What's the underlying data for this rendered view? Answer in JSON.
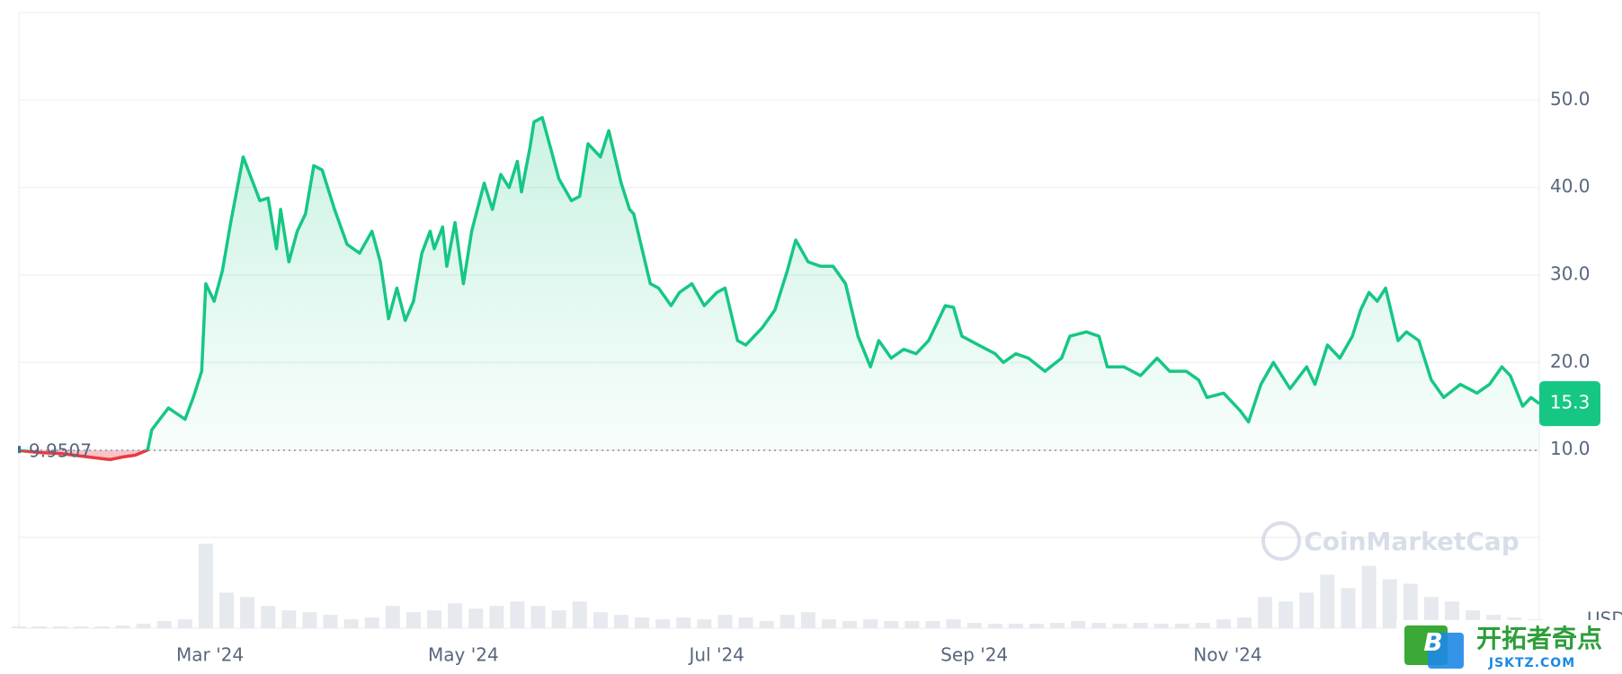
{
  "chart_data": {
    "type": "line",
    "x": [
      15,
      20,
      25,
      30,
      35,
      37,
      40,
      43,
      46,
      47,
      51,
      55,
      57,
      59,
      60,
      62,
      64,
      66,
      69,
      73,
      75,
      77,
      78,
      80,
      82,
      84,
      86,
      88,
      91,
      94,
      97,
      100,
      102,
      104,
      106,
      108,
      110,
      112,
      114,
      115,
      117,
      118,
      120,
      122,
      124,
      127,
      129,
      131,
      133,
      135,
      136,
      138,
      139,
      141,
      143,
      145,
      148,
      150,
      152,
      155,
      157,
      160,
      162,
      163,
      165,
      167,
      169,
      172,
      174,
      177,
      180,
      183,
      185,
      188,
      190,
      194,
      197,
      200,
      202,
      205,
      208,
      211,
      214,
      217,
      220,
      222,
      225,
      228,
      231,
      234,
      236,
      238,
      240,
      242,
      246,
      250,
      252,
      255,
      258,
      262,
      266,
      268,
      272,
      275,
      277,
      281,
      285,
      289,
      292,
      296,
      299,
      301,
      305,
      309,
      311,
      314,
      317,
      321,
      325,
      327,
      330,
      333,
      336,
      338,
      340,
      342,
      344,
      345,
      347,
      349,
      352,
      355,
      358,
      362,
      366,
      369,
      372,
      374,
      377,
      379,
      381
    ],
    "values": [
      9.95,
      9.7,
      9.6,
      9.3,
      9.0,
      8.9,
      9.2,
      9.4,
      10.0,
      12.3,
      14.8,
      13.5,
      16,
      19,
      29,
      27,
      30.5,
      36,
      43.5,
      38.5,
      38.8,
      33,
      37.5,
      31.5,
      35,
      37,
      42.5,
      42,
      37.5,
      33.5,
      32.5,
      35,
      31.5,
      25,
      28.5,
      24.8,
      27,
      32.5,
      35,
      33,
      35.5,
      31,
      36,
      29,
      35,
      40.5,
      37.5,
      41.5,
      40,
      43,
      39.5,
      44.5,
      47.5,
      48,
      44.5,
      41,
      38.5,
      39,
      45,
      43.5,
      46.5,
      40.5,
      37.5,
      37,
      33,
      29,
      28.5,
      26.5,
      28,
      29,
      26.5,
      28,
      28.5,
      22.5,
      22,
      24,
      26,
      30.5,
      34,
      31.5,
      31,
      31,
      29,
      23,
      19.5,
      22.5,
      20.5,
      21.5,
      21,
      22.5,
      24.5,
      26.5,
      26.3,
      23,
      22,
      21,
      20,
      21,
      20.5,
      19,
      20.5,
      23,
      23.5,
      23,
      19.5,
      19.5,
      18.5,
      20.5,
      19,
      19,
      18,
      16,
      16.5,
      14.5,
      13.2,
      17.5,
      20,
      17,
      19.5,
      17.5,
      22,
      20.5,
      23,
      26,
      28,
      27,
      28.5,
      26.5,
      22.5,
      23.5,
      22.5,
      18,
      16,
      17.5,
      16.5,
      17.5,
      19.5,
      18.5,
      15,
      16,
      15.3
    ],
    "color": "#16c784",
    "down_color": "#ea3943",
    "baseline": 9.9507,
    "xlim": [
      15,
      381
    ],
    "xticks": [
      {
        "value": 61,
        "label": "Mar '24"
      },
      {
        "value": 122,
        "label": "May '24"
      },
      {
        "value": 183,
        "label": "Jul '24"
      },
      {
        "value": 245,
        "label": "Sep '24"
      },
      {
        "value": 306,
        "label": "Nov '24"
      }
    ],
    "ylim": [
      0,
      60
    ],
    "yticks": [
      {
        "value": 10,
        "label": "10.0"
      },
      {
        "value": 20,
        "label": "20.0"
      },
      {
        "value": 30,
        "label": "30.0"
      },
      {
        "value": 40,
        "label": "40.0"
      },
      {
        "value": 50,
        "label": "50.0"
      }
    ],
    "grid": true,
    "volume": {
      "x": [
        15,
        20,
        25,
        30,
        35,
        40,
        45,
        50,
        55,
        60,
        65,
        70,
        75,
        80,
        85,
        90,
        95,
        100,
        105,
        110,
        115,
        120,
        125,
        130,
        135,
        140,
        145,
        150,
        155,
        160,
        165,
        170,
        175,
        180,
        185,
        190,
        195,
        200,
        205,
        210,
        215,
        220,
        225,
        230,
        235,
        240,
        245,
        250,
        255,
        260,
        265,
        270,
        275,
        280,
        285,
        290,
        295,
        300,
        305,
        310,
        315,
        320,
        325,
        330,
        335,
        340,
        345,
        350,
        355,
        360,
        365,
        370,
        375,
        380
      ],
      "values": [
        2,
        2,
        2,
        2,
        2,
        3,
        5,
        8,
        10,
        95,
        40,
        35,
        25,
        20,
        18,
        15,
        10,
        12,
        25,
        18,
        20,
        28,
        22,
        25,
        30,
        25,
        20,
        30,
        18,
        15,
        12,
        10,
        12,
        10,
        15,
        12,
        8,
        15,
        18,
        10,
        8,
        10,
        8,
        8,
        8,
        10,
        6,
        5,
        5,
        5,
        6,
        8,
        6,
        5,
        6,
        5,
        5,
        6,
        10,
        12,
        35,
        30,
        40,
        60,
        45,
        70,
        55,
        50,
        35,
        30,
        20,
        15,
        12,
        10
      ],
      "ylim": [
        0,
        100
      ],
      "color": "#e6e9ee",
      "unit": "USD"
    },
    "watermark": "CoinMarketCap"
  },
  "overlay": {
    "title": "开拓者奇点",
    "subtitle": "JSKTZ.COM",
    "icon": "B"
  }
}
